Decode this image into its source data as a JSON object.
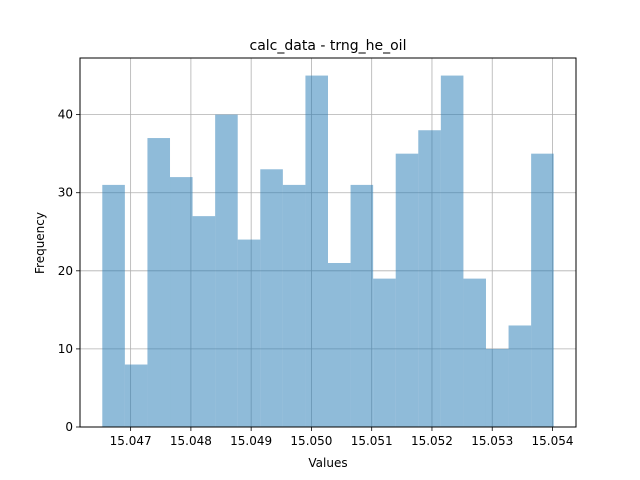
{
  "chart_data": {
    "type": "bar",
    "title": "calc_data - trng_he_oil",
    "xlabel": "Values",
    "ylabel": "Frequency",
    "bins": 20,
    "x_range": [
      15.04653,
      15.05402
    ],
    "xlim": [
      15.04616,
      15.05439
    ],
    "ylim": [
      0,
      47.25
    ],
    "xticks": [
      "15.047",
      "15.048",
      "15.049",
      "15.050",
      "15.051",
      "15.052",
      "15.053",
      "15.054"
    ],
    "yticks": [
      "0",
      "10",
      "20",
      "30",
      "40"
    ],
    "values": [
      31,
      8,
      37,
      32,
      27,
      40,
      24,
      33,
      31,
      45,
      21,
      31,
      19,
      35,
      38,
      45,
      19,
      10,
      13,
      35
    ],
    "grid": true,
    "bar_color": "#1f77b4",
    "bar_alpha": 0.5
  }
}
